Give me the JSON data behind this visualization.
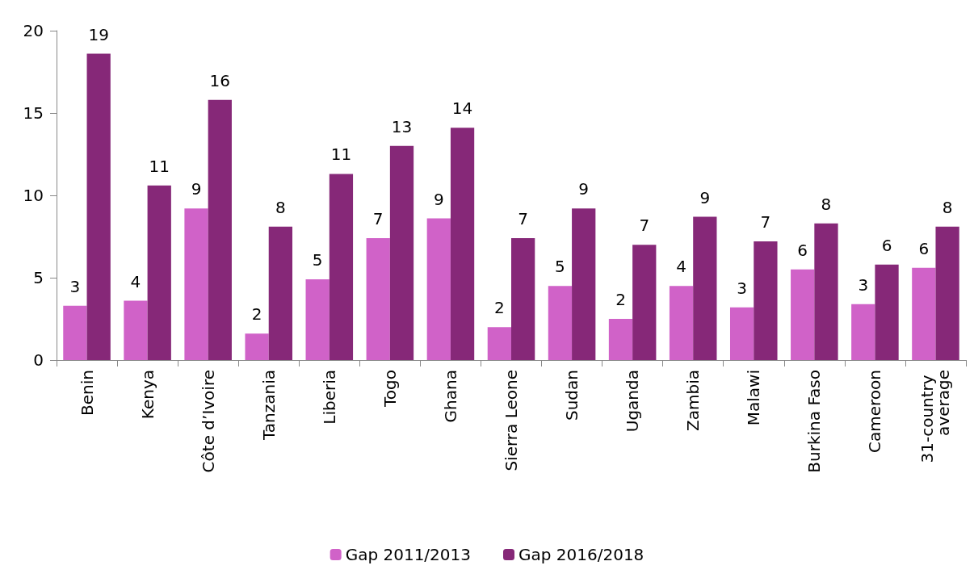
{
  "chart_data": {
    "type": "bar",
    "categories": [
      "Benin",
      "Kenya",
      "Côte d’Ivoire",
      "Tanzania",
      "Liberia",
      "Togo",
      "Ghana",
      "Sierra Leone",
      "Sudan",
      "Uganda",
      "Zambia",
      "Malawi",
      "Burkina Faso",
      "Cameroon",
      "31-country average"
    ],
    "series": [
      {
        "name": "Gap 2011/2013",
        "color": "#d062c8",
        "values": [
          3.3,
          3.6,
          9.2,
          1.6,
          4.9,
          7.4,
          8.6,
          2.0,
          4.5,
          2.5,
          4.5,
          3.2,
          5.5,
          3.4,
          5.6
        ],
        "value_labels": [
          "3",
          "4",
          "9",
          "2",
          "5",
          "7",
          "9",
          "2",
          "5",
          "2",
          "4",
          "3",
          "6",
          "3",
          "6"
        ]
      },
      {
        "name": "Gap 2016/2018",
        "color": "#862878",
        "values": [
          18.6,
          10.6,
          15.8,
          8.1,
          11.3,
          13.0,
          14.1,
          7.4,
          9.2,
          7.0,
          8.7,
          7.2,
          8.3,
          5.8,
          8.1
        ],
        "value_labels": [
          "19",
          "11",
          "16",
          "8",
          "11",
          "13",
          "14",
          "7",
          "9",
          "7",
          "9",
          "7",
          "8",
          "6",
          "8"
        ]
      }
    ],
    "ylim": [
      0,
      20
    ],
    "yticks": [
      0,
      5,
      10,
      15,
      20
    ],
    "grid": false,
    "legend": "bottom"
  }
}
